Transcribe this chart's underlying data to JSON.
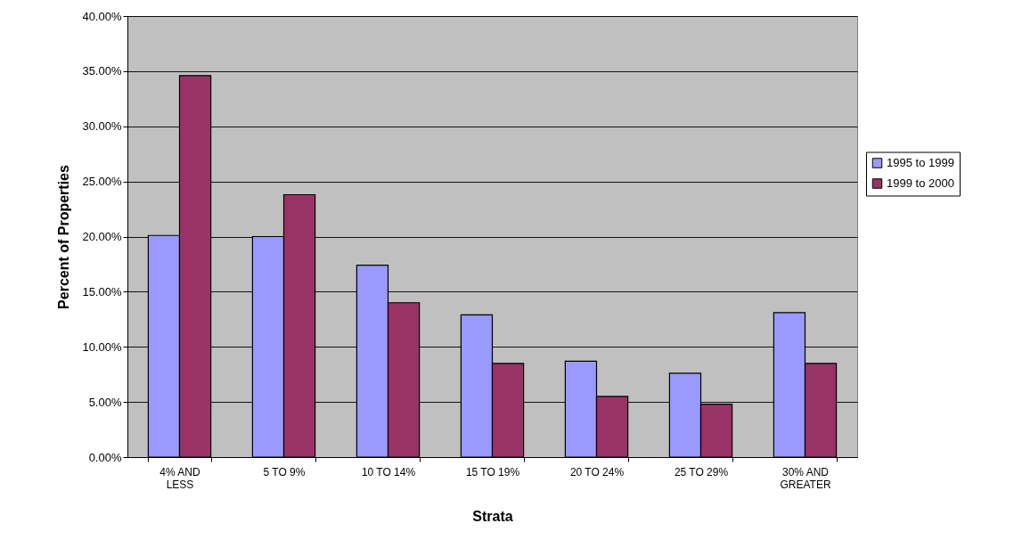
{
  "chart_data": {
    "type": "bar",
    "xlabel": "Strata",
    "ylabel": "Percent of Properties",
    "categories": [
      "4% AND LESS",
      "5 TO 9%",
      "10 TO 14%",
      "15 TO 19%",
      "20 TO 24%",
      "25 TO 29%",
      "30% AND GREATER"
    ],
    "series": [
      {
        "name": "1995 to 1999",
        "color": "#9999ff",
        "values": [
          20.1,
          20.0,
          17.4,
          12.9,
          8.7,
          7.6,
          13.1
        ]
      },
      {
        "name": "1999 to 2000",
        "color": "#993366",
        "values": [
          34.6,
          23.8,
          14.0,
          8.5,
          5.5,
          4.8,
          8.5
        ]
      }
    ],
    "ylim": [
      0,
      40
    ],
    "yticks": [
      {
        "value": 0,
        "label": "0.00%"
      },
      {
        "value": 5,
        "label": "5.00%"
      },
      {
        "value": 10,
        "label": "10.00%"
      },
      {
        "value": 15,
        "label": "15.00%"
      },
      {
        "value": 20,
        "label": "20.00%"
      },
      {
        "value": 25,
        "label": "25.00%"
      },
      {
        "value": 30,
        "label": "30.00%"
      },
      {
        "value": 35,
        "label": "35.00%"
      },
      {
        "value": 40,
        "label": "40.00%"
      }
    ],
    "grid": "y",
    "legend": "right"
  }
}
